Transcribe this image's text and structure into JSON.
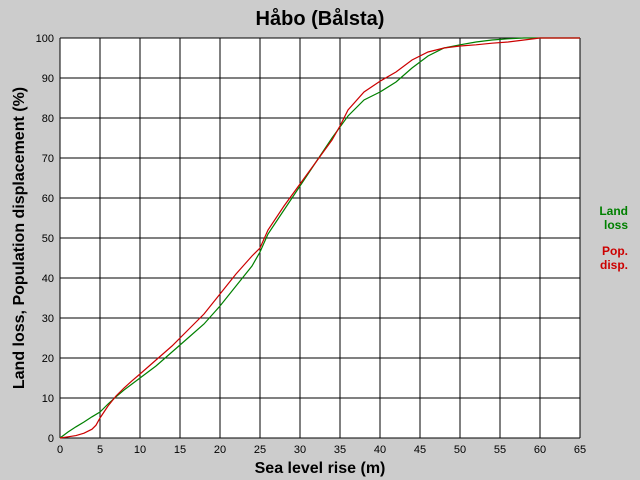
{
  "chart_data": {
    "type": "line",
    "title": "Håbo (Bålsta)",
    "xlabel": "Sea level rise (m)",
    "ylabel": "Land loss, Population displacement (%)",
    "xlim": [
      0,
      65
    ],
    "ylim": [
      0,
      100
    ],
    "xticks": [
      0,
      5,
      10,
      15,
      20,
      25,
      30,
      35,
      40,
      45,
      50,
      55,
      60,
      65
    ],
    "yticks": [
      0,
      10,
      20,
      30,
      40,
      50,
      60,
      70,
      80,
      90,
      100
    ],
    "grid": true,
    "legend_position": "right",
    "colors": {
      "background": "#cccccc",
      "plot_background": "#ffffff",
      "grid": "#000000",
      "land_loss": "#008000",
      "pop_disp": "#cc0000"
    },
    "series": [
      {
        "key": "land_loss",
        "legend": [
          "Land",
          "loss"
        ],
        "x": [
          0,
          1,
          2,
          3,
          4,
          5,
          6,
          7,
          8,
          9,
          10,
          12,
          14,
          16,
          18,
          20,
          22,
          24,
          25,
          26,
          28,
          30,
          32,
          34,
          36,
          38,
          40,
          42,
          44,
          46,
          48,
          50,
          52,
          54,
          56,
          58,
          60,
          62,
          65
        ],
        "y": [
          0,
          1.5,
          2.8,
          4,
          5.3,
          6.5,
          8.5,
          10.3,
          12,
          13.5,
          15,
          18,
          21.5,
          25,
          28.5,
          33,
          38,
          43,
          46.5,
          51,
          57,
          63,
          69,
          75,
          80.5,
          84.5,
          86.5,
          89,
          92.5,
          95.5,
          97.5,
          98.3,
          99,
          99.5,
          99.8,
          100,
          100,
          100,
          100
        ]
      },
      {
        "key": "pop_disp",
        "legend": [
          "Pop.",
          "disp."
        ],
        "x": [
          0,
          1,
          2,
          3,
          4,
          4.5,
          5,
          5.5,
          6,
          7,
          8,
          9,
          10,
          12,
          14,
          16,
          18,
          20,
          22,
          24,
          25,
          26,
          28,
          30,
          32,
          34,
          35,
          36,
          38,
          40,
          42,
          44,
          46,
          48,
          50,
          52,
          54,
          56,
          58,
          60,
          62,
          65
        ],
        "y": [
          0,
          0.3,
          0.6,
          1.2,
          2.2,
          3.2,
          5,
          6.5,
          8,
          10.5,
          12.5,
          14.3,
          16,
          19.5,
          23,
          27,
          31,
          36,
          41,
          45.5,
          47.5,
          52,
          58,
          63.5,
          69,
          74.5,
          78,
          82,
          86.5,
          89.2,
          91.5,
          94.5,
          96.5,
          97.5,
          98,
          98.3,
          98.7,
          99,
          99.5,
          100,
          100,
          100
        ]
      }
    ]
  }
}
